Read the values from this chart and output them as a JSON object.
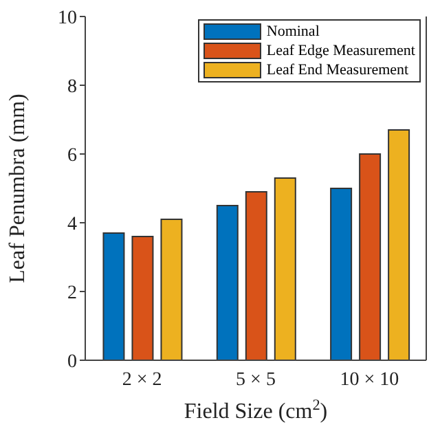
{
  "chart_data": {
    "type": "bar",
    "xlabel": "Field Size (cm$^{2}$)",
    "ylabel": "Leaf Penumbra (mm)",
    "categories": [
      "2 × 2",
      "5 × 5",
      "10 × 10"
    ],
    "series": [
      {
        "name": "Nominal",
        "color": "#0072bd",
        "values": [
          3.7,
          4.5,
          5.0
        ]
      },
      {
        "name": "Leaf Edge Measurement",
        "color": "#d95319",
        "values": [
          3.6,
          4.9,
          6.0
        ]
      },
      {
        "name": "Leaf End Measurement",
        "color": "#edb120",
        "values": [
          4.1,
          5.3,
          6.7
        ]
      }
    ],
    "ylim": [
      0,
      10
    ],
    "yticks": [
      0,
      2,
      4,
      6,
      8,
      10
    ],
    "legend": "top right"
  }
}
